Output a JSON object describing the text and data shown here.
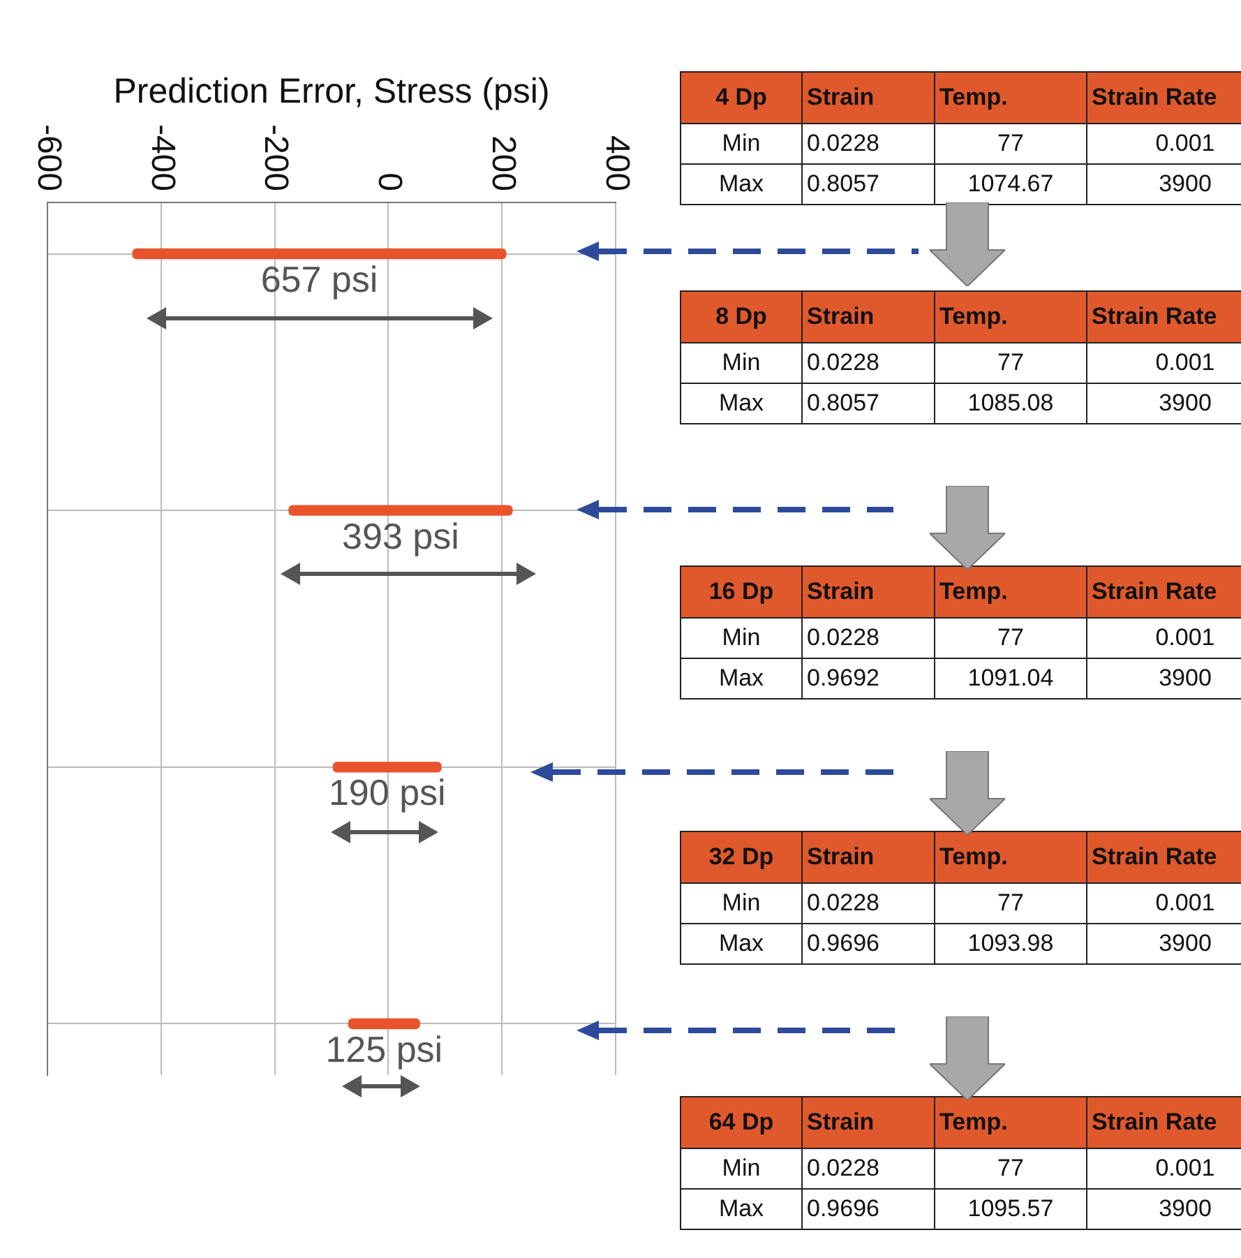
{
  "chart_data": [
    {
      "type": "bar",
      "orientation": "horizontal",
      "xlabel": "Prediction Error, Stress (psi)",
      "categories": [
        null,
        null,
        null,
        null
      ],
      "base": [
        -450,
        -175,
        -97,
        -70
      ],
      "values": [
        657,
        393,
        190,
        125
      ],
      "value_labels": [
        "657 psi",
        "393 psi",
        "190 psi",
        "125 psi"
      ],
      "color": "#e8532b",
      "xlim": [
        -600,
        400
      ],
      "xticks": [
        -600,
        -400,
        -200,
        0,
        200,
        400
      ],
      "grid": true
    },
    {
      "type": "other",
      "annotations": [
        "4 Dp",
        "Strain",
        "Temp.",
        "Strain Rate",
        "Min",
        "0.0228",
        "77",
        "0.001",
        "Max",
        "0.8057",
        "1074.67",
        "3900"
      ]
    },
    {
      "type": "other",
      "annotations": [
        "8 Dp",
        "Strain",
        "Temp.",
        "Strain Rate",
        "Min",
        "0.0228",
        "77",
        "0.001",
        "Max",
        "0.8057",
        "1085.08",
        "3900"
      ]
    },
    {
      "type": "other",
      "annotations": [
        "16 Dp",
        "Strain",
        "Temp.",
        "Strain Rate",
        "Min",
        "0.0228",
        "77",
        "0.001",
        "Max",
        "0.9692",
        "1091.04",
        "3900"
      ]
    },
    {
      "type": "other",
      "annotations": [
        "32 Dp",
        "Strain",
        "Temp.",
        "Strain Rate",
        "Min",
        "0.0228",
        "77",
        "0.001",
        "Max",
        "0.9696",
        "1093.98",
        "3900"
      ]
    },
    {
      "type": "other",
      "annotations": [
        "64 Dp",
        "Strain",
        "Temp.",
        "Strain Rate",
        "Min",
        "0.0228",
        "77",
        "0.001",
        "Max",
        "0.9696",
        "1095.57",
        "3900"
      ]
    }
  ]
}
